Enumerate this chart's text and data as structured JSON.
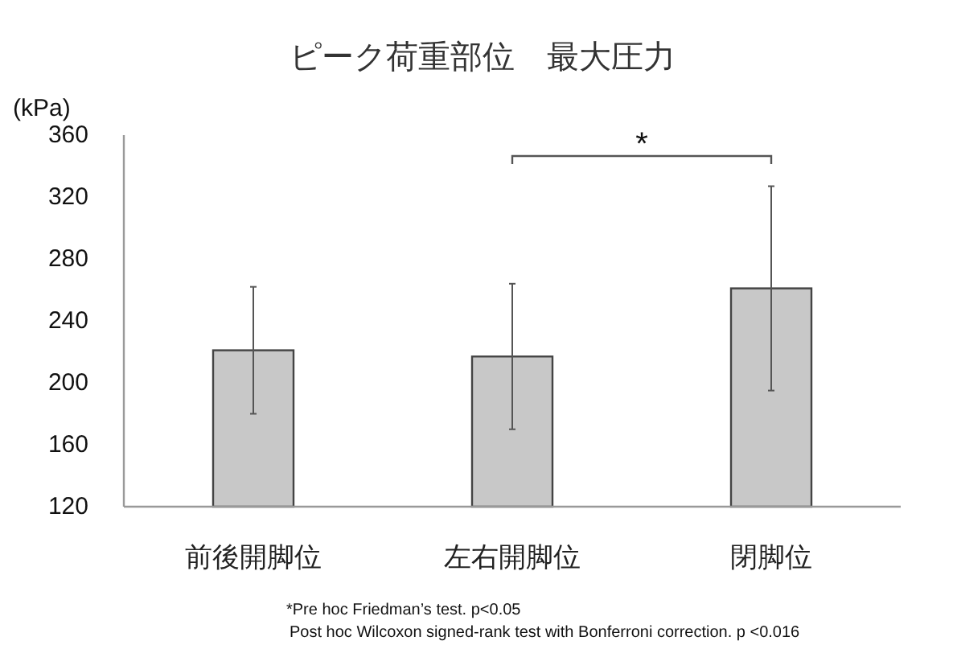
{
  "chart_data": {
    "type": "bar",
    "title": "ピーク荷重部位　最大圧力",
    "ylabel": "(kPa)",
    "categories": [
      "前後開脚位",
      "左右開脚位",
      "閉脚位"
    ],
    "values": [
      221,
      217,
      261
    ],
    "errors": [
      41,
      47,
      66
    ],
    "color": "#c8c8c8",
    "ylim": [
      120,
      360
    ],
    "yticks": [
      120,
      160,
      200,
      240,
      280,
      320,
      360
    ],
    "grid": false,
    "annotations": [
      "*",
      "*Pre hoc Friedman’s test. p<0.05",
      "Post hoc Wilcoxon signed-rank test with Bonferroni correction. p <0.016"
    ]
  }
}
